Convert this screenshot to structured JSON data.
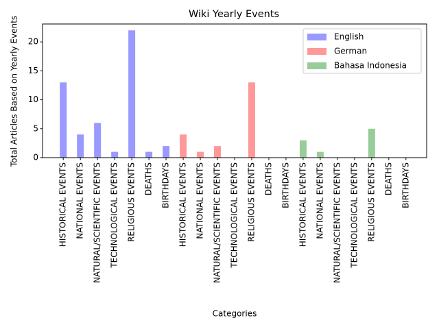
{
  "chart_data": {
    "type": "bar",
    "title": "Wiki Yearly Events",
    "x_label": "Categories",
    "y_label": "Total Articles Based on Yearly Events",
    "categories": [
      "HISTORICAL EVENTS",
      "NATIONAL EVENTS",
      "NATURAL/SCIENTIFIC EVENTS",
      "TECHNOLOGICAL EVENTS",
      "RELIGIOUS EVENTS",
      "DEATHS",
      "BIRTHDAYS",
      "HISTORICAL EVENTS",
      "NATIONAL EVENTS",
      "NATURAL/SCIENTIFIC EVENTS",
      "TECHNOLOGICAL EVENTS",
      "RELIGIOUS EVENTS",
      "DEATHS",
      "BIRTHDAYS",
      "HISTORICAL EVENTS",
      "NATIONAL EVENTS",
      "NATURAL/SCIENTIFIC EVENTS",
      "TECHNOLOGICAL EVENTS",
      "RELIGIOUS EVENTS",
      "DEATHS",
      "BIRTHDAYS"
    ],
    "series": [
      {
        "name": "English",
        "color": "#9999ff",
        "values": [
          13,
          4,
          6,
          1,
          22,
          1,
          2,
          null,
          null,
          null,
          null,
          null,
          null,
          null,
          null,
          null,
          null,
          null,
          null,
          null,
          null
        ]
      },
      {
        "name": "German",
        "color": "#ff9999",
        "values": [
          null,
          null,
          null,
          null,
          null,
          null,
          null,
          4,
          1,
          2,
          0,
          13,
          0,
          0,
          null,
          null,
          null,
          null,
          null,
          null,
          null
        ]
      },
      {
        "name": "Bahasa Indonesia",
        "color": "#99cc99",
        "values": [
          null,
          null,
          null,
          null,
          null,
          null,
          null,
          null,
          null,
          null,
          null,
          null,
          null,
          null,
          3,
          1,
          0,
          0,
          5,
          0,
          0
        ]
      }
    ],
    "ylim": [
      0,
      23.1
    ],
    "yticks": [
      0,
      5,
      10,
      15,
      20
    ],
    "legend": "upper right"
  }
}
